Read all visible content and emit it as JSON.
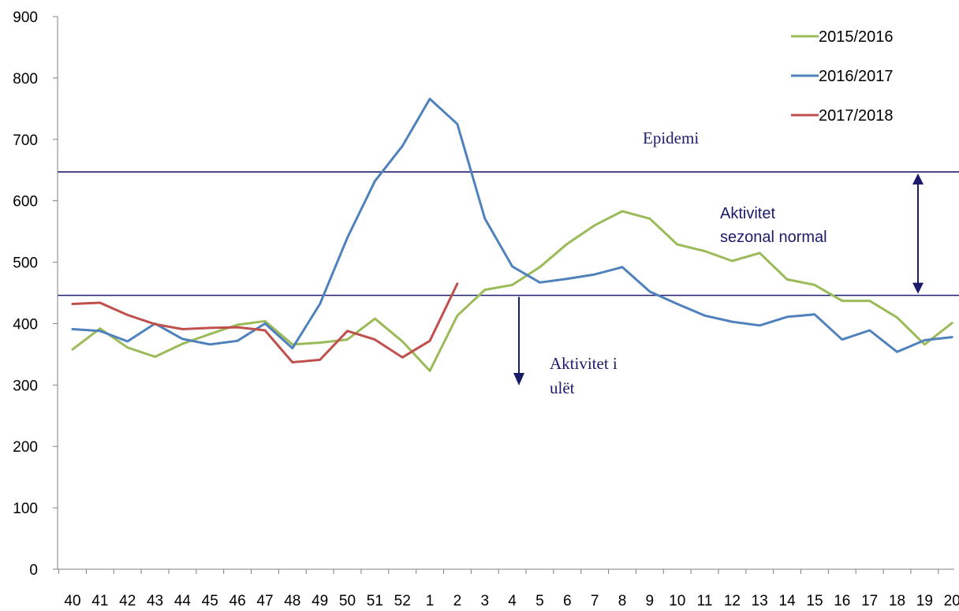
{
  "chart_data": {
    "type": "line",
    "title": "",
    "xlabel": "",
    "ylabel": "",
    "ylim": [
      0,
      900
    ],
    "yticks": [
      "0",
      "100",
      "200",
      "300",
      "400",
      "500",
      "600",
      "700",
      "800",
      "900"
    ],
    "categories": [
      "40",
      "41",
      "42",
      "43",
      "44",
      "45",
      "46",
      "47",
      "48",
      "49",
      "50",
      "51",
      "52",
      "1",
      "2",
      "3",
      "4",
      "5",
      "6",
      "7",
      "8",
      "9",
      "10",
      "11",
      "12",
      "13",
      "14",
      "15",
      "16",
      "17",
      "18",
      "19",
      "20"
    ],
    "series": [
      {
        "name": "2015/2016",
        "color": "#9bbb59",
        "values": [
          358,
          392,
          361,
          346,
          367,
          383,
          398,
          404,
          366,
          369,
          374,
          408,
          371,
          323,
          413,
          455,
          463,
          492,
          530,
          560,
          583,
          571,
          529,
          518,
          502,
          515,
          472,
          463,
          437,
          437,
          410,
          366,
          401
        ]
      },
      {
        "name": "2016/2017",
        "color": "#4f81bd",
        "values": [
          391,
          388,
          371,
          400,
          375,
          366,
          372,
          400,
          360,
          432,
          540,
          632,
          689,
          766,
          725,
          571,
          493,
          467,
          473,
          480,
          492,
          452,
          432,
          413,
          403,
          397,
          411,
          415,
          374,
          389,
          354,
          373,
          378
        ]
      },
      {
        "name": "2017/2018",
        "color": "#c0504d",
        "values": [
          432,
          434,
          414,
          399,
          391,
          393,
          394,
          389,
          337,
          341,
          388,
          374,
          345,
          372,
          465,
          null,
          null,
          null,
          null,
          null,
          null,
          null,
          null,
          null,
          null,
          null,
          null,
          null,
          null,
          null,
          null,
          null,
          null
        ]
      }
    ],
    "thresholds": [
      {
        "value": 647,
        "color": "#1f1f6f"
      },
      {
        "value": 446,
        "color": "#1f1f6f"
      }
    ],
    "annotations": {
      "epidemic": "Epidemi",
      "normal_line1": "Aktivitet",
      "normal_line2": "sezonal normal",
      "low_line1": "Aktivitet i",
      "low_line2": "ulët"
    },
    "arrow_color": "#1b1b6b",
    "grid": false,
    "legend_position": "top-right"
  }
}
